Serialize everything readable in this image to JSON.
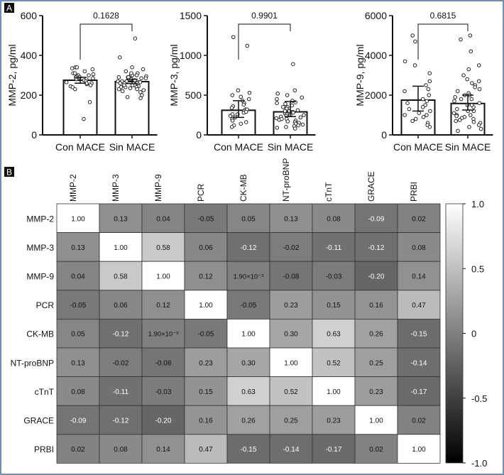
{
  "panel_labels": {
    "a": "A",
    "b": "B"
  },
  "chart_data": [
    {
      "type": "bar",
      "ylabel": "MMP-2, pg/ml",
      "ylim": [
        0,
        600
      ],
      "yticks": [
        0,
        200,
        400,
        600
      ],
      "categories": [
        "Con MACE",
        "Sin MACE"
      ],
      "values": [
        275,
        268
      ],
      "error": [
        [
          260,
          290
        ],
        [
          258,
          280
        ]
      ],
      "p_value": "0.1628",
      "points": [
        [
          340,
          335,
          330,
          340,
          320,
          310,
          305,
          300,
          295,
          290,
          285,
          280,
          280,
          275,
          270,
          265,
          260,
          255,
          250,
          245,
          240,
          230,
          165,
          80,
          300,
          290,
          310,
          260
        ],
        [
          485,
          390,
          340,
          330,
          320,
          310,
          300,
          300,
          295,
          290,
          290,
          285,
          280,
          280,
          275,
          270,
          270,
          265,
          260,
          260,
          255,
          250,
          250,
          245,
          240,
          240,
          235,
          230,
          225,
          220,
          215,
          200,
          190,
          185,
          300,
          290,
          280,
          270,
          260,
          250,
          240,
          230,
          310,
          285,
          265
        ]
      ]
    },
    {
      "type": "bar",
      "ylabel": "MMP-3, pg/ml",
      "ylim": [
        0,
        1500
      ],
      "yticks": [
        0,
        500,
        1000,
        1500
      ],
      "categories": [
        "Con MACE",
        "Sin MACE"
      ],
      "values": [
        310,
        290
      ],
      "error": [
        [
          220,
          430
        ],
        [
          230,
          420
        ]
      ],
      "p_value": "0.9901",
      "points": [
        [
          1230,
          1120,
          560,
          530,
          500,
          480,
          450,
          430,
          400,
          380,
          360,
          340,
          320,
          300,
          280,
          260,
          240,
          220,
          200,
          180,
          160,
          140,
          120,
          100,
          320,
          290,
          260
        ],
        [
          890,
          560,
          520,
          500,
          470,
          450,
          430,
          410,
          390,
          370,
          350,
          330,
          310,
          300,
          290,
          280,
          270,
          260,
          250,
          240,
          230,
          220,
          210,
          200,
          190,
          180,
          170,
          160,
          150,
          140,
          130,
          120,
          110,
          100,
          90,
          80,
          300,
          250,
          200,
          350,
          400
        ]
      ]
    },
    {
      "type": "bar",
      "ylabel": "MMP-9, pg/ml",
      "ylim": [
        0,
        6000
      ],
      "yticks": [
        0,
        2000,
        4000,
        6000
      ],
      "categories": [
        "Con MACE",
        "Sin MACE"
      ],
      "values": [
        1750,
        1580
      ],
      "error": [
        [
          1200,
          2450
        ],
        [
          1250,
          2000
        ]
      ],
      "p_value": "0.6815",
      "points": [
        [
          5000,
          4700,
          3700,
          3500,
          3100,
          2700,
          2500,
          2300,
          2200,
          2000,
          1800,
          1700,
          1600,
          1500,
          1400,
          1200,
          1100,
          1000,
          900,
          800,
          700,
          600,
          500,
          400,
          1000,
          1300
        ],
        [
          5000,
          4800,
          4200,
          3500,
          3300,
          3000,
          2800,
          2700,
          2600,
          2500,
          2400,
          2300,
          2200,
          2100,
          2000,
          1900,
          1800,
          1700,
          1600,
          1500,
          1400,
          1300,
          1200,
          1100,
          1000,
          950,
          900,
          850,
          800,
          750,
          700,
          650,
          600,
          500,
          400,
          300,
          200,
          1500,
          1200,
          1800,
          2000,
          1000
        ]
      ]
    },
    {
      "type": "heatmap",
      "labels": [
        "MMP-2",
        "MMP-3",
        "MMP-9",
        "PCR",
        "CK-MB",
        "NT-proBNP",
        "cTnT",
        "GRACE",
        "PRBI"
      ],
      "values": [
        [
          1.0,
          0.13,
          0.04,
          -0.05,
          0.05,
          0.13,
          0.08,
          -0.09,
          0.02
        ],
        [
          0.13,
          1.0,
          0.58,
          0.06,
          -0.12,
          -0.02,
          -0.11,
          -0.12,
          0.08
        ],
        [
          0.04,
          0.58,
          1.0,
          0.12,
          0.0019,
          -0.08,
          -0.03,
          -0.2,
          0.14
        ],
        [
          -0.05,
          0.06,
          0.12,
          1.0,
          -0.05,
          0.23,
          0.15,
          0.16,
          0.47
        ],
        [
          0.05,
          -0.12,
          0.0019,
          -0.05,
          1.0,
          0.3,
          0.63,
          0.26,
          -0.15
        ],
        [
          0.13,
          -0.02,
          -0.08,
          0.23,
          0.3,
          1.0,
          0.52,
          0.25,
          -0.14
        ],
        [
          0.08,
          -0.11,
          -0.03,
          0.15,
          0.63,
          0.52,
          1.0,
          0.23,
          -0.17
        ],
        [
          -0.09,
          -0.12,
          -0.2,
          0.16,
          0.26,
          0.25,
          0.23,
          1.0,
          0.02
        ],
        [
          0.02,
          0.08,
          0.14,
          0.47,
          -0.15,
          -0.14,
          -0.17,
          0.02,
          1.0
        ]
      ],
      "special_label": "1.90×10⁻³",
      "colorbar": {
        "range": [
          -1,
          1
        ],
        "ticks": [
          "1.0",
          "0.5",
          "0",
          "-0.5",
          "-1.0"
        ]
      }
    }
  ]
}
